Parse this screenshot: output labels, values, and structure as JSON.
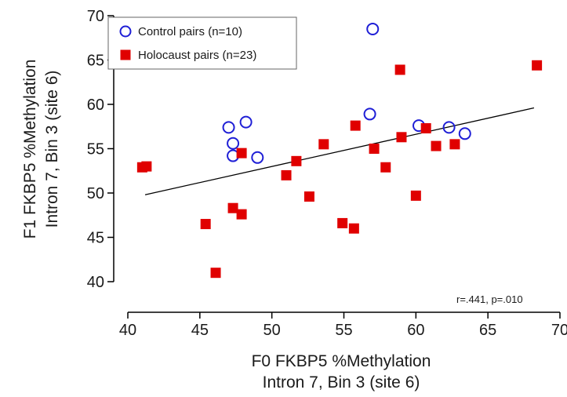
{
  "chart_data": {
    "type": "scatter",
    "title": "",
    "xlabel_lines": [
      "F0 FKBP5 %Methylation",
      "Intron 7, Bin 3 (site 6)"
    ],
    "ylabel_lines": [
      "F1 FKBP5 %Methylation",
      "Intron 7, Bin 3 (site 6)"
    ],
    "xlim": [
      40,
      70
    ],
    "ylim": [
      40,
      70
    ],
    "xticks": [
      40,
      45,
      50,
      55,
      60,
      65,
      70
    ],
    "yticks": [
      40,
      45,
      50,
      55,
      60,
      65,
      70
    ],
    "grid": false,
    "legend_position": "top-left",
    "series": [
      {
        "name": "Control pairs (n=10)",
        "marker": "open-circle",
        "color": "#1f1fd6",
        "points": [
          [
            47.0,
            57.4
          ],
          [
            48.2,
            58.0
          ],
          [
            47.3,
            55.6
          ],
          [
            47.3,
            54.2
          ],
          [
            49.0,
            54.0
          ],
          [
            57.0,
            68.5
          ],
          [
            56.8,
            58.9
          ],
          [
            62.3,
            57.4
          ],
          [
            63.4,
            56.7
          ],
          [
            60.2,
            57.6
          ]
        ]
      },
      {
        "name": "Holocaust pairs (n=23)",
        "marker": "filled-square",
        "color": "#e00000",
        "points": [
          [
            41.0,
            52.9
          ],
          [
            41.3,
            53.0
          ],
          [
            45.4,
            46.5
          ],
          [
            46.1,
            41.0
          ],
          [
            47.3,
            48.3
          ],
          [
            47.9,
            47.6
          ],
          [
            47.9,
            54.5
          ],
          [
            51.0,
            52.0
          ],
          [
            51.7,
            53.6
          ],
          [
            52.6,
            49.6
          ],
          [
            53.6,
            55.5
          ],
          [
            54.9,
            46.6
          ],
          [
            55.7,
            46.0
          ],
          [
            55.8,
            57.6
          ],
          [
            57.1,
            55.0
          ],
          [
            57.9,
            52.9
          ],
          [
            58.9,
            63.9
          ],
          [
            59.0,
            56.3
          ],
          [
            60.0,
            49.7
          ],
          [
            60.7,
            57.3
          ],
          [
            61.4,
            55.3
          ],
          [
            62.7,
            55.5
          ],
          [
            68.4,
            64.4
          ]
        ]
      }
    ],
    "trendline": {
      "x": [
        41.2,
        68.2
      ],
      "y": [
        49.8,
        59.6
      ],
      "color": "#000000"
    },
    "annotation": "r=.441, p=.010"
  }
}
